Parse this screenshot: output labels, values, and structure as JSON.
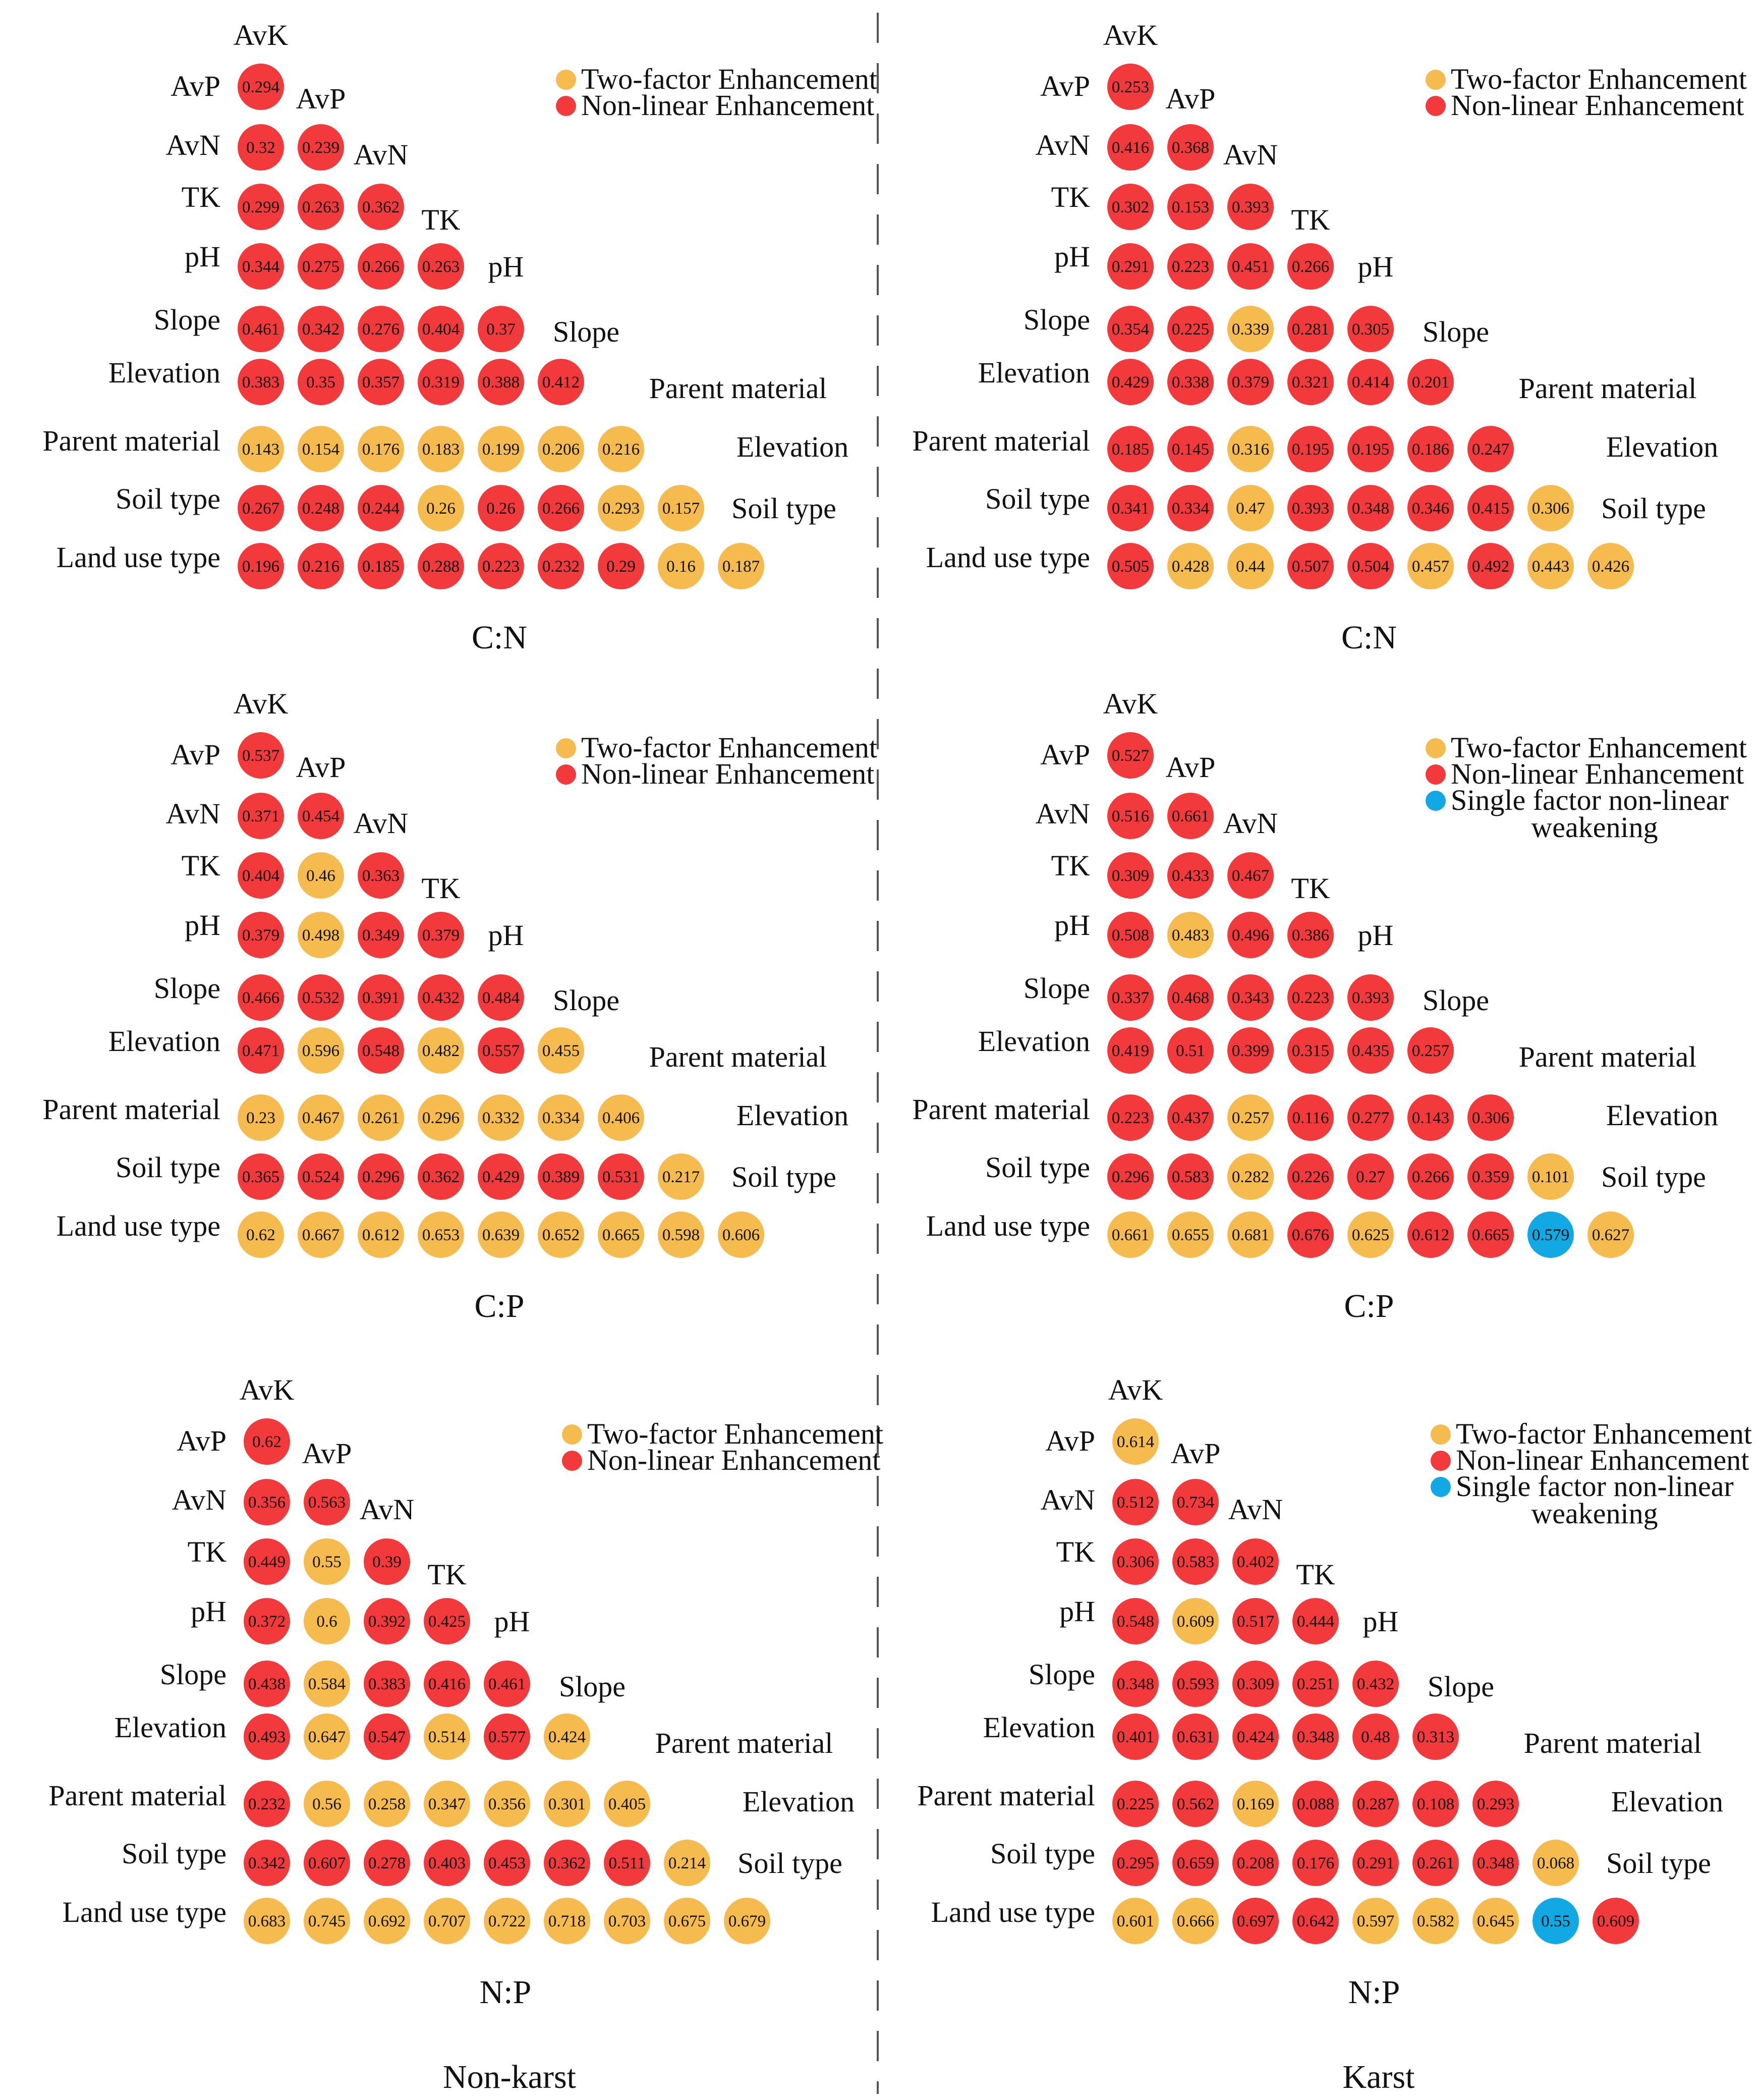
{
  "chart_data": {
    "type": "heatmap",
    "factors_rows": [
      "AvP",
      "AvN",
      "TK",
      "pH",
      "Slope",
      "Elevation",
      "Parent material",
      "Soil type",
      "Land use type"
    ],
    "factors_cols": [
      "AvK",
      "AvP",
      "AvN",
      "TK",
      "pH",
      "Slope",
      "Parent material",
      "Elevation",
      "Soil type"
    ],
    "legend": {
      "two_factor": "Two-factor Enhancement",
      "nonlinear": "Non-linear Enhancement",
      "weakening_line1": "Single factor non-linear",
      "weakening_line2": "weakening"
    },
    "colors": {
      "Y": "#f5bb4f",
      "R": "#f2393c",
      "B": "#12a8e3"
    },
    "groups": [
      "Non-karst",
      "Karst"
    ],
    "panels": [
      {
        "id": "nonkarst-cn",
        "caption": "C:N",
        "weakening_legend": false,
        "values": [
          [
            0.294
          ],
          [
            0.32,
            0.239
          ],
          [
            0.299,
            0.263,
            0.362
          ],
          [
            0.344,
            0.275,
            0.266,
            0.263
          ],
          [
            0.461,
            0.342,
            0.276,
            0.404,
            0.37
          ],
          [
            0.383,
            0.35,
            0.357,
            0.319,
            0.388,
            0.412
          ],
          [
            0.143,
            0.154,
            0.176,
            0.183,
            0.199,
            0.206,
            0.216
          ],
          [
            0.267,
            0.248,
            0.244,
            0.26,
            0.26,
            0.266,
            0.293,
            0.157
          ],
          [
            0.196,
            0.216,
            0.185,
            0.288,
            0.223,
            0.232,
            0.29,
            0.16,
            0.187
          ]
        ],
        "types": [
          "R",
          "RR",
          "RRR",
          "RRRR",
          "RRRRR",
          "RRRRRR",
          "YYYYYYY",
          "RRRYRRYY",
          "RRRRRRRYY"
        ]
      },
      {
        "id": "karst-cn",
        "caption": "C:N",
        "weakening_legend": false,
        "values": [
          [
            0.253
          ],
          [
            0.416,
            0.368
          ],
          [
            0.302,
            0.153,
            0.393
          ],
          [
            0.291,
            0.223,
            0.451,
            0.266
          ],
          [
            0.354,
            0.225,
            0.339,
            0.281,
            0.305
          ],
          [
            0.429,
            0.338,
            0.379,
            0.321,
            0.414,
            0.201
          ],
          [
            0.185,
            0.145,
            0.316,
            0.195,
            0.195,
            0.186,
            0.247
          ],
          [
            0.341,
            0.334,
            0.47,
            0.393,
            0.348,
            0.346,
            0.415,
            0.306
          ],
          [
            0.505,
            0.428,
            0.44,
            0.507,
            0.504,
            0.457,
            0.492,
            0.443,
            0.426
          ]
        ],
        "types": [
          "R",
          "RR",
          "RRR",
          "RRRR",
          "RRYRR",
          "RRRRRR",
          "RRYRRRR",
          "RRYRRRRY",
          "RYYRRYRYY"
        ]
      },
      {
        "id": "nonkarst-cp",
        "caption": "C:P",
        "weakening_legend": false,
        "values": [
          [
            0.537
          ],
          [
            0.371,
            0.454
          ],
          [
            0.404,
            0.46,
            0.363
          ],
          [
            0.379,
            0.498,
            0.349,
            0.379
          ],
          [
            0.466,
            0.532,
            0.391,
            0.432,
            0.484
          ],
          [
            0.471,
            0.596,
            0.548,
            0.482,
            0.557,
            0.455
          ],
          [
            0.23,
            0.467,
            0.261,
            0.296,
            0.332,
            0.334,
            0.406
          ],
          [
            0.365,
            0.524,
            0.296,
            0.362,
            0.429,
            0.389,
            0.531,
            0.217
          ],
          [
            0.62,
            0.667,
            0.612,
            0.653,
            0.639,
            0.652,
            0.665,
            0.598,
            0.606
          ]
        ],
        "types": [
          "R",
          "RR",
          "RYR",
          "RYRR",
          "RRRRR",
          "RYRYRY",
          "YYYYYYY",
          "RRRRRRRY",
          "YYYYYYYYY"
        ]
      },
      {
        "id": "karst-cp",
        "caption": "C:P",
        "weakening_legend": true,
        "values": [
          [
            0.527
          ],
          [
            0.516,
            0.661
          ],
          [
            0.309,
            0.433,
            0.467
          ],
          [
            0.508,
            0.483,
            0.496,
            0.386
          ],
          [
            0.337,
            0.468,
            0.343,
            0.223,
            0.393
          ],
          [
            0.419,
            0.51,
            0.399,
            0.315,
            0.435,
            0.257
          ],
          [
            0.223,
            0.437,
            0.257,
            0.116,
            0.277,
            0.143,
            0.306
          ],
          [
            0.296,
            0.583,
            0.282,
            0.226,
            0.27,
            0.266,
            0.359,
            0.101
          ],
          [
            0.661,
            0.655,
            0.681,
            0.676,
            0.625,
            0.612,
            0.665,
            0.579,
            0.627
          ]
        ],
        "types": [
          "R",
          "RR",
          "RRR",
          "RYRR",
          "RRRRR",
          "RRRRRR",
          "RRYRRRR",
          "RRYRRRRY",
          "YYYRYRRBY"
        ]
      },
      {
        "id": "nonkarst-np",
        "caption": "N:P",
        "weakening_legend": false,
        "values": [
          [
            0.62
          ],
          [
            0.356,
            0.563
          ],
          [
            0.449,
            0.55,
            0.39
          ],
          [
            0.372,
            0.6,
            0.392,
            0.425
          ],
          [
            0.438,
            0.584,
            0.383,
            0.416,
            0.461
          ],
          [
            0.493,
            0.647,
            0.547,
            0.514,
            0.577,
            0.424
          ],
          [
            0.232,
            0.56,
            0.258,
            0.347,
            0.356,
            0.301,
            0.405
          ],
          [
            0.342,
            0.607,
            0.278,
            0.403,
            0.453,
            0.362,
            0.511,
            0.214
          ],
          [
            0.683,
            0.745,
            0.692,
            0.707,
            0.722,
            0.718,
            0.703,
            0.675,
            0.679
          ]
        ],
        "types": [
          "R",
          "RR",
          "RYR",
          "RYRR",
          "RYRRR",
          "RYRYRY",
          "RYYYYYY",
          "RRRRRRRY",
          "YYYYYYYYY"
        ]
      },
      {
        "id": "karst-np",
        "caption": "N:P",
        "weakening_legend": true,
        "values": [
          [
            0.614
          ],
          [
            0.512,
            0.734
          ],
          [
            0.306,
            0.583,
            0.402
          ],
          [
            0.548,
            0.609,
            0.517,
            0.444
          ],
          [
            0.348,
            0.593,
            0.309,
            0.251,
            0.432
          ],
          [
            0.401,
            0.631,
            0.424,
            0.348,
            0.48,
            0.313
          ],
          [
            0.225,
            0.562,
            0.169,
            0.088,
            0.287,
            0.108,
            0.293
          ],
          [
            0.295,
            0.659,
            0.208,
            0.176,
            0.291,
            0.261,
            0.348,
            0.068
          ],
          [
            0.601,
            0.666,
            0.697,
            0.642,
            0.597,
            0.582,
            0.645,
            0.55,
            0.609
          ]
        ],
        "types": [
          "Y",
          "RR",
          "RRR",
          "RYRR",
          "RRRRR",
          "RRRRRR",
          "RRYRRRR",
          "RRRRRRRY",
          "YYRRYYYBR"
        ]
      }
    ]
  }
}
